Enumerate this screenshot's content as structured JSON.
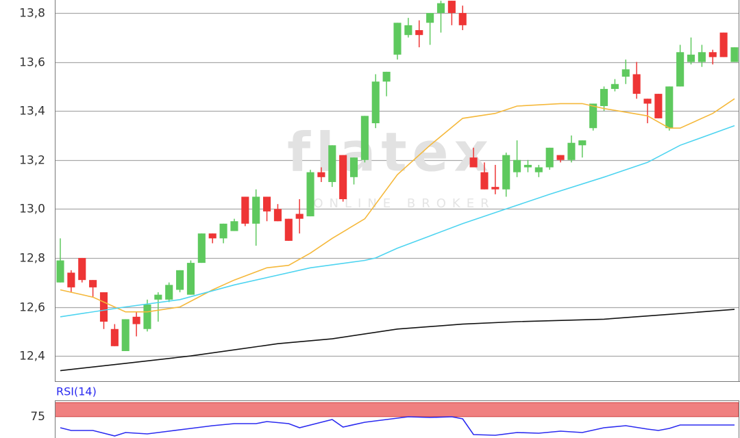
{
  "chart_data": [
    {
      "type": "candlestick",
      "open": [
        12.7,
        12.74,
        12.8,
        12.71,
        12.66,
        12.51,
        12.42,
        12.56,
        12.51,
        12.63,
        12.63,
        12.67,
        12.65,
        12.78,
        12.9,
        12.88,
        12.91,
        13.05,
        12.94,
        13.05,
        13.0,
        12.96,
        12.98,
        12.97,
        13.15,
        13.11,
        13.22,
        13.13,
        13.2,
        13.35,
        13.52,
        13.63,
        13.71,
        13.73,
        13.76,
        13.8,
        13.85,
        13.8,
        13.21,
        13.15,
        13.09,
        13.08,
        13.15,
        13.17,
        13.15,
        13.17,
        13.22,
        13.2,
        13.26,
        13.33,
        13.42,
        13.49,
        13.54,
        13.55,
        13.45,
        13.47,
        13.33,
        13.5,
        13.6,
        13.6,
        13.64,
        13.72,
        13.6
      ],
      "high": [
        12.88,
        12.75,
        12.8,
        12.71,
        12.66,
        12.53,
        12.55,
        12.58,
        12.63,
        12.66,
        12.7,
        12.75,
        12.79,
        12.9,
        12.9,
        12.94,
        12.96,
        13.05,
        13.08,
        13.05,
        13.02,
        12.96,
        13.04,
        13.16,
        13.17,
        13.26,
        13.22,
        13.21,
        13.38,
        13.55,
        13.56,
        13.76,
        13.78,
        13.77,
        13.8,
        13.85,
        13.85,
        13.83,
        13.25,
        13.19,
        13.18,
        13.23,
        13.28,
        13.2,
        13.18,
        13.25,
        13.22,
        13.3,
        13.28,
        13.43,
        13.5,
        13.53,
        13.61,
        13.6,
        13.45,
        13.47,
        13.5,
        13.67,
        13.7,
        13.67,
        13.65,
        13.72,
        13.66
      ],
      "low": [
        12.7,
        12.66,
        12.7,
        12.64,
        12.51,
        12.44,
        12.42,
        12.48,
        12.5,
        12.54,
        12.62,
        12.66,
        12.65,
        12.78,
        12.86,
        12.86,
        12.91,
        12.93,
        12.85,
        12.95,
        12.95,
        12.87,
        12.9,
        12.97,
        13.11,
        13.09,
        13.03,
        13.1,
        13.19,
        13.33,
        13.46,
        13.61,
        13.7,
        13.66,
        13.67,
        13.72,
        13.75,
        13.73,
        13.17,
        13.08,
        13.06,
        13.05,
        13.13,
        13.15,
        13.13,
        13.16,
        13.19,
        13.19,
        13.21,
        13.32,
        13.4,
        13.48,
        13.51,
        13.45,
        13.35,
        13.37,
        13.32,
        13.5,
        13.59,
        13.58,
        13.59,
        13.62,
        13.6
      ],
      "close": [
        12.79,
        12.68,
        12.71,
        12.68,
        12.54,
        12.44,
        12.55,
        12.53,
        12.61,
        12.65,
        12.69,
        12.75,
        12.78,
        12.9,
        12.88,
        12.94,
        12.95,
        12.94,
        13.05,
        12.99,
        12.95,
        12.87,
        12.96,
        13.15,
        13.13,
        13.26,
        13.04,
        13.21,
        13.38,
        13.52,
        13.56,
        13.76,
        13.75,
        13.71,
        13.8,
        13.84,
        13.8,
        13.75,
        13.17,
        13.08,
        13.08,
        13.22,
        13.2,
        13.18,
        13.17,
        13.25,
        13.2,
        13.27,
        13.28,
        13.43,
        13.49,
        13.51,
        13.57,
        13.47,
        13.43,
        13.37,
        13.5,
        13.64,
        13.63,
        13.64,
        13.62,
        13.62,
        13.66
      ],
      "up_color": "#5ec95e",
      "down_color": "#ee3535",
      "ylim": [
        12.297,
        13.853
      ],
      "yticks": [
        {
          "value": 12.4,
          "label": "12,4"
        },
        {
          "value": 12.6,
          "label": "12,6"
        },
        {
          "value": 12.8,
          "label": "12,8"
        },
        {
          "value": 13.0,
          "label": "13,0"
        },
        {
          "value": 13.2,
          "label": "13,2"
        },
        {
          "value": 13.4,
          "label": "13,4"
        },
        {
          "value": 13.6,
          "label": "13,6"
        },
        {
          "value": 13.8,
          "label": "13,8"
        }
      ],
      "grid": true,
      "overlays": [
        {
          "color": "#f5b83a",
          "x": [
            0,
            3,
            6,
            8,
            11,
            14,
            16,
            19,
            21,
            23,
            25,
            28,
            31,
            34,
            37,
            40,
            42,
            46,
            48,
            50,
            54,
            56,
            57,
            60,
            62
          ],
          "values": [
            12.67,
            12.64,
            12.58,
            12.58,
            12.6,
            12.67,
            12.71,
            12.76,
            12.77,
            12.82,
            12.88,
            12.96,
            13.14,
            13.26,
            13.37,
            13.39,
            13.42,
            13.43,
            13.43,
            13.41,
            13.38,
            13.33,
            13.33,
            13.39,
            13.45
          ]
        },
        {
          "color": "#4dd4f0",
          "x": [
            0,
            6,
            11,
            16,
            19,
            23,
            28,
            29,
            31,
            34,
            37,
            41,
            45,
            50,
            54,
            57,
            62
          ],
          "values": [
            12.56,
            12.6,
            12.63,
            12.69,
            12.72,
            12.76,
            12.79,
            12.8,
            12.84,
            12.89,
            12.94,
            13.0,
            13.06,
            13.13,
            13.19,
            13.26,
            13.34
          ]
        },
        {
          "color": "#111111",
          "x": [
            0,
            6,
            12,
            20,
            25,
            31,
            37,
            42,
            50,
            56,
            62
          ],
          "values": [
            12.34,
            12.37,
            12.4,
            12.45,
            12.47,
            12.51,
            12.53,
            12.54,
            12.55,
            12.57,
            12.59
          ]
        }
      ],
      "watermark": {
        "title": "flatex",
        "subtitle": "ONLINE BROKER"
      }
    },
    {
      "type": "line",
      "label": "RSI(14)",
      "ylim": [
        37,
        104
      ],
      "yticks": [
        75
      ],
      "band": [
        75,
        100
      ],
      "band_color": "#f08080",
      "series": [
        {
          "color": "#2a2af0",
          "x": [
            0,
            1,
            3,
            5,
            6,
            8,
            10,
            12,
            14,
            16,
            18,
            19,
            21,
            22,
            24,
            25,
            26,
            28,
            30,
            32,
            34,
            36,
            37,
            38,
            40,
            42,
            44,
            46,
            48,
            50,
            52,
            54,
            55,
            56,
            57,
            62
          ],
          "values": [
            55.3,
            50.4,
            50.4,
            40.7,
            46.7,
            44.3,
            49.2,
            54.1,
            58.9,
            62.6,
            62.6,
            66.2,
            62.6,
            55.3,
            65.0,
            69.9,
            56.5,
            65.0,
            69.9,
            74.8,
            73.5,
            74.8,
            71.1,
            43.1,
            41.9,
            46.7,
            45.5,
            49.2,
            46.7,
            55.3,
            58.9,
            52.8,
            50.4,
            54.1,
            60.1,
            60.1
          ]
        }
      ]
    }
  ]
}
